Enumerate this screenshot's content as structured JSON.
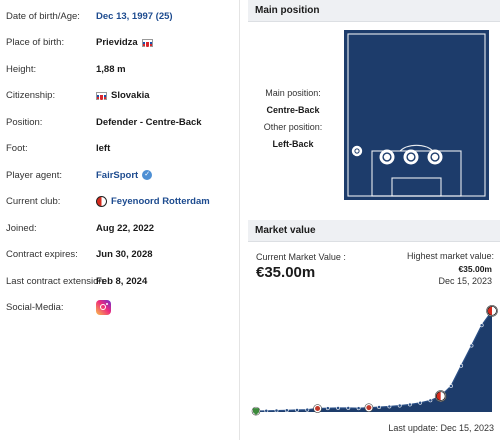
{
  "player_info": [
    {
      "label": "Date of birth/Age:",
      "value": "Dec 13, 1997 (25)",
      "style": "link"
    },
    {
      "label": "Place of birth:",
      "value": "Prievidza",
      "flag": "slovakia-flag"
    },
    {
      "label": "Height:",
      "value": "1,88 m"
    },
    {
      "label": "Citizenship:",
      "value": "Slovakia",
      "flag_before": "slovakia-flag"
    },
    {
      "label": "Position:",
      "value": "Defender - Centre-Back"
    },
    {
      "label": "Foot:",
      "value": "left"
    },
    {
      "label": "Player agent:",
      "value": "FairSport",
      "style": "link",
      "icon": "verified-icon"
    },
    {
      "label": "Current club:",
      "value": "Feyenoord Rotterdam",
      "style": "link",
      "icon": "club-crest-icon"
    },
    {
      "label": "Joined:",
      "value": "Aug 22, 2022"
    },
    {
      "label": "Contract expires:",
      "value": "Jun 30, 2028"
    },
    {
      "label": "Last contract extension:",
      "value": "Feb 8, 2024"
    },
    {
      "label": "Social-Media:",
      "value": "",
      "icon": "instagram-icon"
    }
  ],
  "main_position": {
    "header": "Main position",
    "main_label": "Main position:",
    "main_value": "Centre-Back",
    "other_label": "Other position:",
    "other_value": "Left-Back",
    "pitch_color": "#1d3c6b"
  },
  "market_value": {
    "header": "Market value",
    "current_label": "Current Market Value :",
    "current_value": "€35.00m",
    "highest_label": "Highest market value:",
    "highest_value": "€35.00m",
    "highest_date": "Dec 15, 2023",
    "last_update": "Last update: Dec 15, 2023",
    "accent_color": "#1d3c6b"
  },
  "chart_data": {
    "type": "area",
    "title": "",
    "xlabel": "",
    "ylabel": "",
    "x": [
      0,
      1,
      2,
      3,
      4,
      5,
      6,
      7,
      8,
      9,
      10,
      11,
      12,
      13,
      14,
      15,
      16,
      17,
      18,
      19,
      20,
      21,
      22,
      23
    ],
    "values": [
      0.3,
      0.4,
      0.5,
      0.6,
      0.7,
      0.8,
      1.2,
      1.3,
      1.4,
      1.4,
      1.3,
      1.5,
      1.7,
      1.9,
      2.2,
      2.6,
      3.2,
      4.0,
      5.5,
      9.0,
      16.0,
      23.0,
      30.0,
      35.0
    ],
    "ylim": [
      0,
      36
    ],
    "club_markers": [
      {
        "index": 0,
        "name": "early-club-crest-icon"
      },
      {
        "index": 6,
        "name": "mid-club-crest-icon"
      },
      {
        "index": 11,
        "name": "second-club-crest-icon"
      },
      {
        "index": 18,
        "name": "feyenoord-crest-icon"
      },
      {
        "index": 23,
        "name": "feyenoord-crest-icon"
      }
    ]
  }
}
